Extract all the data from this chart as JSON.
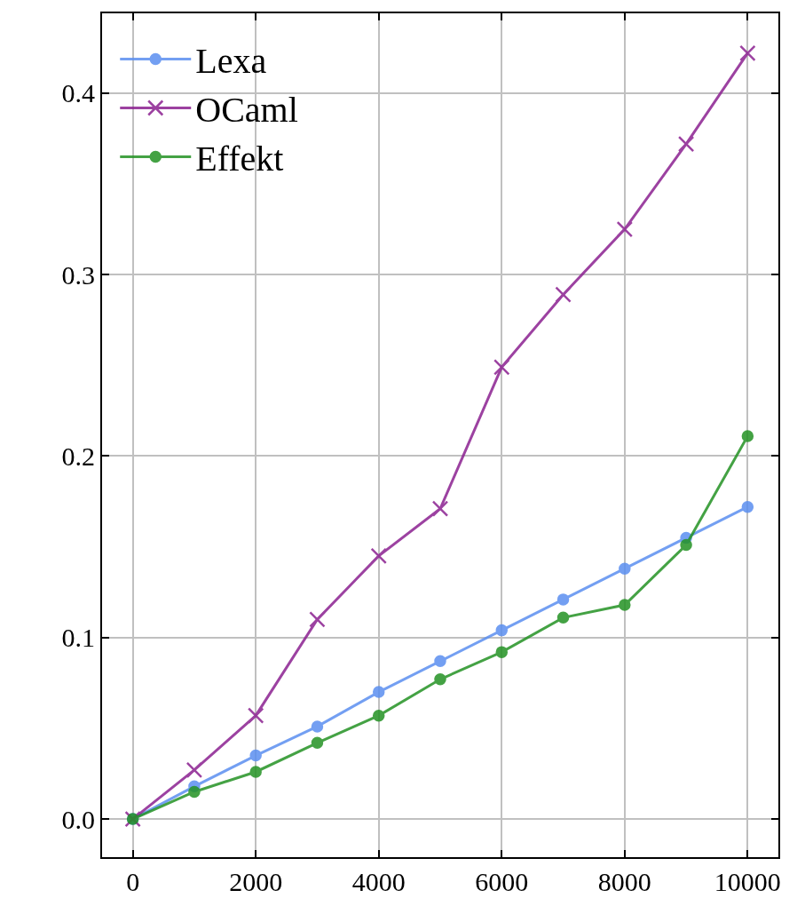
{
  "chart_data": {
    "type": "line",
    "x": [
      0,
      1000,
      2000,
      3000,
      4000,
      5000,
      6000,
      7000,
      8000,
      9000,
      10000
    ],
    "series": [
      {
        "name": "Lexa",
        "color": "#5b8ff0",
        "marker": "circle",
        "values": [
          0,
          0.018,
          0.035,
          0.051,
          0.07,
          0.087,
          0.104,
          0.121,
          0.138,
          0.155,
          0.172
        ]
      },
      {
        "name": "OCaml",
        "color": "#8b2090",
        "marker": "cross",
        "values": [
          0,
          0.027,
          0.057,
          0.11,
          0.145,
          0.171,
          0.249,
          0.289,
          0.325,
          0.372,
          0.422
        ]
      },
      {
        "name": "Effekt",
        "color": "#249224",
        "marker": "circle",
        "values": [
          0,
          0.015,
          0.026,
          0.042,
          0.057,
          0.077,
          0.092,
          0.111,
          0.118,
          0.151,
          0.211
        ]
      }
    ],
    "xlim": [
      -500,
      10500
    ],
    "xticks": [
      0,
      2000,
      4000,
      6000,
      8000,
      10000
    ],
    "ylim": [
      -0.021,
      0.444
    ],
    "yticks": [
      {
        "value": 0,
        "label": "0.0"
      },
      0.1,
      0.2,
      0.3,
      0.4
    ],
    "grid": true,
    "legend": "top left",
    "line_style": "solid"
  }
}
